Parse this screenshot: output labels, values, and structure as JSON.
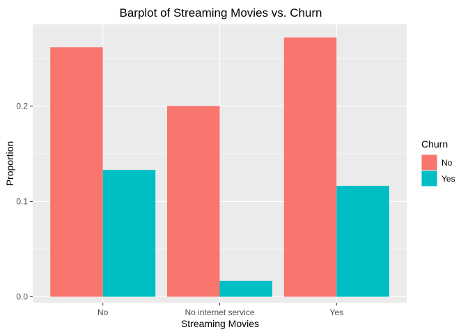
{
  "chart_data": {
    "type": "bar",
    "title": "Barplot of Streaming Movies vs. Churn",
    "xlabel": "Streaming Movies",
    "ylabel": "Proportion",
    "categories": [
      "No",
      "No internet service",
      "Yes"
    ],
    "series": [
      {
        "name": "No",
        "color": "#F8766D",
        "values": [
          0.2615,
          0.2001,
          0.2719
        ]
      },
      {
        "name": "Yes",
        "color": "#00BFC4",
        "values": [
          0.133,
          0.0166,
          0.1163
        ]
      }
    ],
    "ylim": [
      -0.0062,
      0.2856
    ],
    "yticks": [
      0.0,
      0.1,
      0.2
    ],
    "ytick_labels": [
      "0.0",
      "0.1",
      "0.2"
    ],
    "legend": {
      "title": "Churn",
      "position": "right"
    },
    "grid": true,
    "panel_background": "#EBEBEB",
    "grid_color": "#FFFFFF"
  }
}
